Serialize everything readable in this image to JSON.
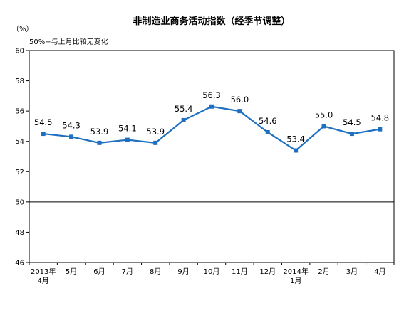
{
  "chart_data": {
    "type": "line",
    "title": "非制造业商务活动指数（经季节调整）",
    "unit": "（%）",
    "annotation": "50%=与上月比较无变化",
    "categories": [
      [
        "2013年",
        "4月"
      ],
      [
        "5月"
      ],
      [
        "6月"
      ],
      [
        "7月"
      ],
      [
        "8月"
      ],
      [
        "9月"
      ],
      [
        "10月"
      ],
      [
        "11月"
      ],
      [
        "12月"
      ],
      [
        "2014年",
        "1月"
      ],
      [
        "2月"
      ],
      [
        "3月"
      ],
      [
        "4月"
      ]
    ],
    "values": [
      54.5,
      54.3,
      53.9,
      54.1,
      53.9,
      55.4,
      56.3,
      56.0,
      54.6,
      53.4,
      55.0,
      54.5,
      54.8
    ],
    "value_labels": [
      "54.5",
      "54.3",
      "53.9",
      "54.1",
      "53.9",
      "55.4",
      "56.3",
      "56.0",
      "54.6",
      "53.4",
      "55.0",
      "54.5",
      "54.8"
    ],
    "y_ticks": [
      "60",
      "58",
      "56",
      "54",
      "52",
      "50",
      "48",
      "46"
    ],
    "ylim": [
      46,
      60
    ],
    "reference_line": 50,
    "colors": {
      "line": "#1f6fc1",
      "marker": "#1f6fc1",
      "axis": "#000000"
    },
    "grid": false
  }
}
